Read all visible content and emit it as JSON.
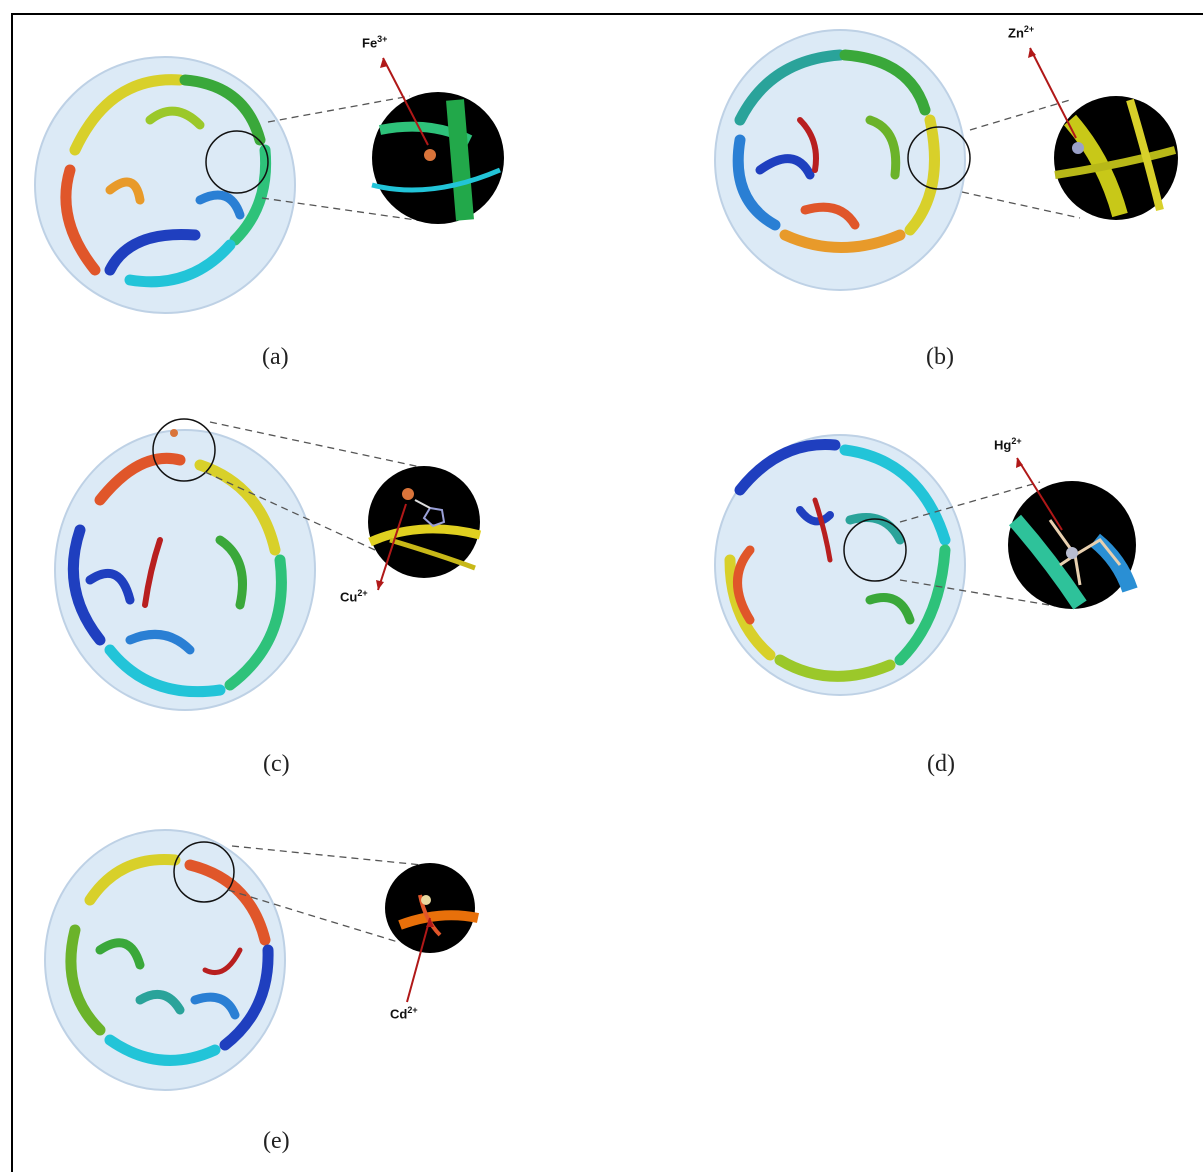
{
  "panels": [
    {
      "caption": "(a)",
      "ion": "Fe",
      "charge": "3+"
    },
    {
      "caption": "(b)",
      "ion": "Zn",
      "charge": "2+"
    },
    {
      "caption": "(c)",
      "ion": "Cu",
      "charge": "2+"
    },
    {
      "caption": "(d)",
      "ion": "Hg",
      "charge": "2+"
    },
    {
      "caption": "(e)",
      "ion": "Cd",
      "charge": "2+"
    }
  ],
  "colors": {
    "surface": "#d9e8f6",
    "surface_edge": "#b7cde3",
    "zoom_bg": "#000000",
    "arrow": "#b01818",
    "metal_fe": "#d9743a",
    "metal_zn": "#9aa0c8",
    "metal_cu": "#d9743a",
    "metal_hg": "#b8bcd0",
    "metal_cd": "#e8d8a0"
  },
  "ribbon_palette": [
    "#1f3fbf",
    "#2a7fd4",
    "#22c4d8",
    "#2ec27a",
    "#3aa83a",
    "#9bc82a",
    "#d8d02a",
    "#e89a2a",
    "#e0562a",
    "#b81f1f"
  ]
}
